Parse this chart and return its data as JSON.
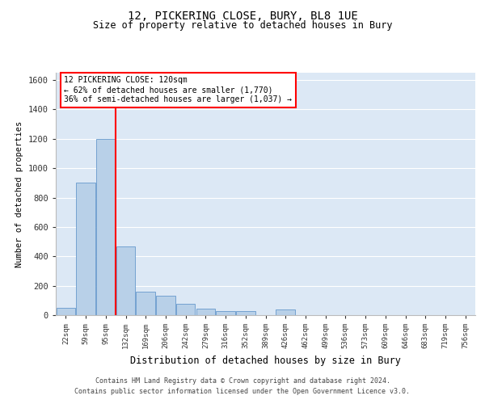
{
  "title1": "12, PICKERING CLOSE, BURY, BL8 1UE",
  "title2": "Size of property relative to detached houses in Bury",
  "xlabel": "Distribution of detached houses by size in Bury",
  "ylabel": "Number of detached properties",
  "categories": [
    "22sqm",
    "59sqm",
    "95sqm",
    "132sqm",
    "169sqm",
    "206sqm",
    "242sqm",
    "279sqm",
    "316sqm",
    "352sqm",
    "389sqm",
    "426sqm",
    "462sqm",
    "499sqm",
    "536sqm",
    "573sqm",
    "609sqm",
    "646sqm",
    "683sqm",
    "719sqm",
    "756sqm"
  ],
  "values": [
    50,
    900,
    1200,
    470,
    160,
    130,
    75,
    45,
    25,
    25,
    0,
    40,
    0,
    0,
    0,
    0,
    0,
    0,
    0,
    0,
    0
  ],
  "bar_color": "#b8d0e8",
  "bar_edge_color": "#6699cc",
  "vline_color": "red",
  "vline_pos": 2.5,
  "annotation_line1": "12 PICKERING CLOSE: 120sqm",
  "annotation_line2": "← 62% of detached houses are smaller (1,770)",
  "annotation_line3": "36% of semi-detached houses are larger (1,037) →",
  "annotation_box_color": "white",
  "annotation_box_edge": "red",
  "ylim": [
    0,
    1650
  ],
  "yticks": [
    0,
    200,
    400,
    600,
    800,
    1000,
    1200,
    1400,
    1600
  ],
  "bg_color": "#dce8f5",
  "footer1": "Contains HM Land Registry data © Crown copyright and database right 2024.",
  "footer2": "Contains public sector information licensed under the Open Government Licence v3.0."
}
